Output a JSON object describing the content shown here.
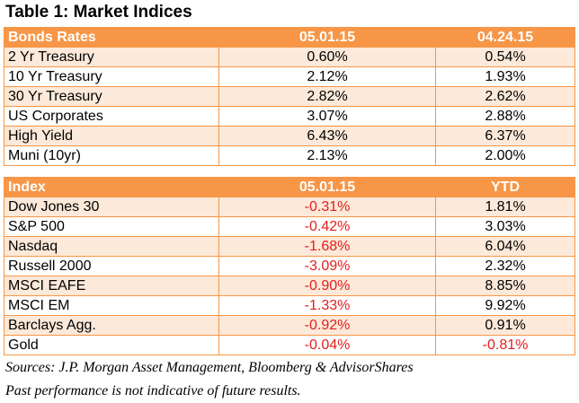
{
  "title": "Table 1: Market Indices",
  "tables": [
    {
      "header": [
        "Bonds Rates",
        "05.01.15",
        "04.24.15"
      ],
      "rows": [
        [
          "2 Yr Treasury",
          "0.60%",
          "0.54%"
        ],
        [
          "10 Yr Treasury",
          "2.12%",
          "1.93%"
        ],
        [
          "30 Yr Treasury",
          "2.82%",
          "2.62%"
        ],
        [
          "US Corporates",
          "3.07%",
          "2.88%"
        ],
        [
          "High Yield",
          "6.43%",
          "6.37%"
        ],
        [
          "Muni (10yr)",
          "2.13%",
          "2.00%"
        ]
      ]
    },
    {
      "header": [
        "Index",
        "05.01.15",
        "YTD"
      ],
      "rows": [
        [
          "Dow Jones 30",
          "-0.31%",
          "1.81%"
        ],
        [
          "S&P 500",
          "-0.42%",
          "3.03%"
        ],
        [
          "Nasdaq",
          "-1.68%",
          "6.04%"
        ],
        [
          "Russell 2000",
          "-3.09%",
          "2.32%"
        ],
        [
          "MSCI EAFE",
          "-0.90%",
          "8.85%"
        ],
        [
          "MSCI EM",
          "-1.33%",
          "9.92%"
        ],
        [
          "Barclays Agg.",
          "-0.92%",
          "0.91%"
        ],
        [
          "Gold",
          "-0.04%",
          "-0.81%"
        ]
      ]
    }
  ],
  "notes": [
    "Sources: J.P. Morgan Asset Management, Bloomberg & AdvisorShares",
    "Past performance is not indicative of future results."
  ]
}
